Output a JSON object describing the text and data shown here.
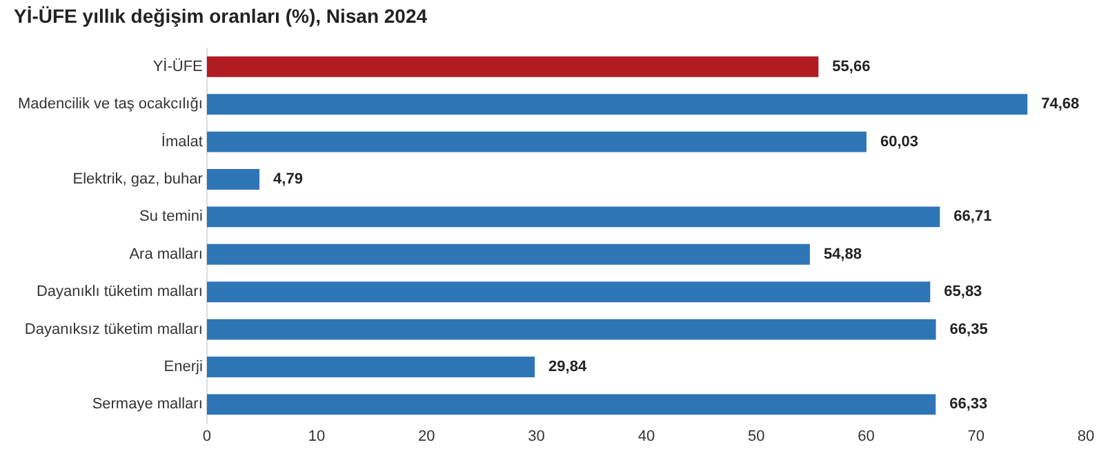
{
  "chart_data": {
    "type": "bar",
    "orientation": "horizontal",
    "title": "Yİ-ÜFE yıllık değişim oranları (%), Nisan 2024",
    "categories": [
      "Yİ-ÜFE",
      "Madencilik ve taş ocakcılığı",
      "İmalat",
      "Elektrik, gaz, buhar",
      "Su temini",
      "Ara malları",
      "Dayanıklı tüketim malları",
      "Dayanıksız tüketim malları",
      "Enerji",
      "Sermaye malları"
    ],
    "values": [
      55.66,
      74.68,
      60.03,
      4.79,
      66.71,
      54.88,
      65.83,
      66.35,
      29.84,
      66.33
    ],
    "colors": [
      "#b01c22",
      "#2e75b6",
      "#2e75b6",
      "#2e75b6",
      "#2e75b6",
      "#2e75b6",
      "#2e75b6",
      "#2e75b6",
      "#2e75b6",
      "#2e75b6"
    ],
    "value_labels": [
      "55,66",
      "74,68",
      "60,03",
      "4,79",
      "66,71",
      "54,88",
      "65,83",
      "66,35",
      "29,84",
      "66,33"
    ],
    "xlim": [
      0,
      80
    ],
    "xticks": [
      0,
      10,
      20,
      30,
      40,
      50,
      60,
      70,
      80
    ],
    "grid": false,
    "legend": false
  }
}
